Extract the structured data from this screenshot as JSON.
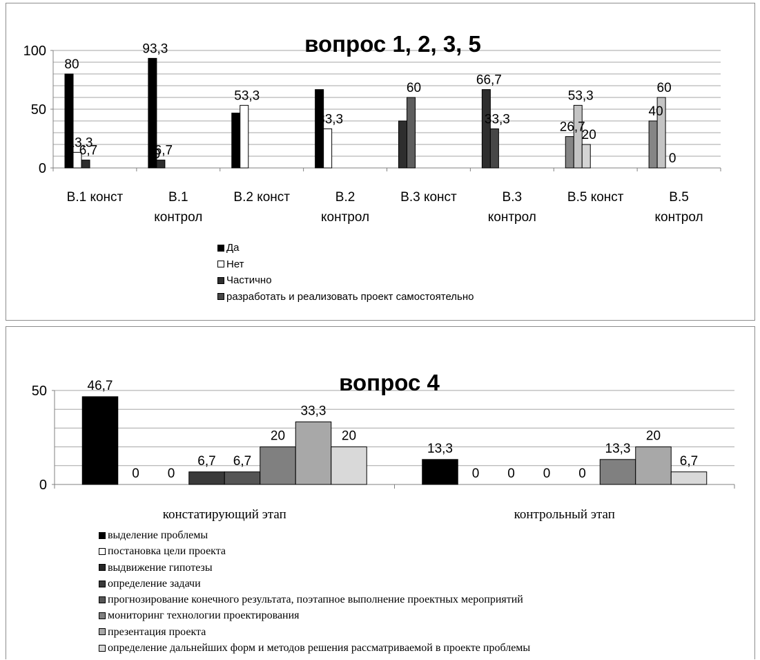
{
  "chart_data": [
    {
      "type": "bar",
      "title": "вопрос 1, 2, 3, 5",
      "categories": [
        "В.1 конст",
        "В.1 контрол",
        "В.2 конст",
        "В.2 контрол",
        "В.3 конст",
        "В.3 контрол",
        "В.5 конст",
        "В.5 контрол"
      ],
      "ylim": [
        0,
        100
      ],
      "yticks": [
        0,
        50,
        100
      ],
      "grid": true,
      "legend_position": "bottom",
      "series": [
        {
          "name": "Да",
          "color": "#000000",
          "values": [
            80,
            93.3,
            46.7,
            66.7,
            null,
            null,
            null,
            null
          ],
          "labels": [
            "80",
            "93,3",
            "",
            "",
            "",
            "",
            "",
            ""
          ]
        },
        {
          "name": "Нет",
          "color": "#ffffff",
          "values": [
            13.3,
            null,
            53.3,
            33.3,
            null,
            null,
            null,
            null
          ],
          "labels": [
            "13,3",
            "",
            "53,3",
            "33,3",
            "",
            "",
            "",
            ""
          ]
        },
        {
          "name": "Частично",
          "color": "#2e2e2e",
          "values": [
            6.7,
            6.7,
            null,
            null,
            40,
            66.7,
            null,
            null
          ],
          "labels": [
            "6,7",
            "6,7",
            "",
            "",
            "",
            "66,7",
            "",
            ""
          ]
        },
        {
          "name": "разработать и реализовать проект самостоятельно",
          "color": "#474747",
          "values": [
            null,
            null,
            null,
            null,
            null,
            33.3,
            null,
            null
          ],
          "labels": [
            "",
            "",
            "",
            "",
            "",
            "33,3",
            "",
            ""
          ]
        }
      ],
      "unlegended_series": [
        {
          "color": "#5e5e5e",
          "values": [
            null,
            null,
            null,
            null,
            60,
            null,
            null,
            null
          ],
          "labels": [
            "",
            "",
            "",
            "",
            "60",
            "",
            "",
            ""
          ]
        },
        {
          "color": "#858585",
          "values": [
            null,
            null,
            null,
            null,
            null,
            null,
            26.7,
            40
          ],
          "labels": [
            "",
            "",
            "",
            "",
            "",
            "",
            "26,7",
            "40"
          ]
        },
        {
          "color": "#c4c4c4",
          "values": [
            null,
            null,
            null,
            null,
            null,
            null,
            53.3,
            60
          ],
          "labels": [
            "",
            "",
            "",
            "",
            "",
            "",
            "53,3",
            "60"
          ]
        },
        {
          "color": "#d4d4d4",
          "values": [
            null,
            null,
            null,
            null,
            null,
            null,
            20,
            0
          ],
          "labels": [
            "",
            "",
            "",
            "",
            "",
            "",
            "20",
            "0"
          ]
        }
      ],
      "extra_labels": [
        {
          "text": "0",
          "category": 1,
          "value": 0
        }
      ]
    },
    {
      "type": "bar",
      "title": "вопрос 4",
      "categories": [
        "констатирующий этап",
        "контрольный этап"
      ],
      "ylim": [
        0,
        50
      ],
      "yticks": [
        0,
        50
      ],
      "grid": true,
      "legend_position": "bottom",
      "series": [
        {
          "name": "выделение проблемы",
          "color": "#000000",
          "values": [
            46.7,
            13.3
          ],
          "labels": [
            "46,7",
            "13,3"
          ]
        },
        {
          "name": "постановка цели проекта",
          "color": "#ffffff",
          "values": [
            0,
            0
          ],
          "labels": [
            "0",
            "0"
          ]
        },
        {
          "name": "выдвижение гипотезы",
          "color": "#262626",
          "values": [
            0,
            0
          ],
          "labels": [
            "0",
            "0"
          ]
        },
        {
          "name": "определение задачи",
          "color": "#3a3a3a",
          "values": [
            6.7,
            0
          ],
          "labels": [
            "6,7",
            "0"
          ]
        },
        {
          "name": "прогнозирование конечного результата, поэтапное выполнение проектных мероприятий",
          "color": "#555555",
          "values": [
            6.7,
            0
          ],
          "labels": [
            "6,7",
            "0"
          ]
        },
        {
          "name": "мониторинг технологии проектирования",
          "color": "#808080",
          "values": [
            20,
            13.3
          ],
          "labels": [
            "20",
            "13,3"
          ]
        },
        {
          "name": "презентация проекта",
          "color": "#a8a8a8",
          "values": [
            33.3,
            20
          ],
          "labels": [
            "33,3",
            "20"
          ]
        },
        {
          "name": "определение дальнейших форм и методов решения рассматриваемой в проекте проблемы",
          "color": "#d9d9d9",
          "values": [
            20,
            6.7
          ],
          "labels": [
            "20",
            "6,7"
          ]
        }
      ]
    }
  ]
}
